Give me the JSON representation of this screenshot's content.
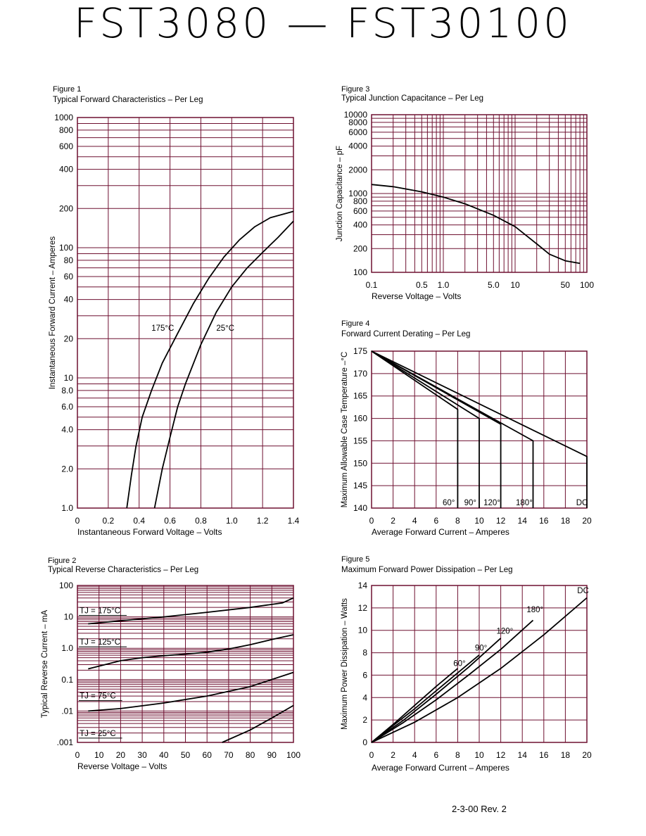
{
  "page": {
    "title": "FST3080  —  FST30100",
    "footer": "2-3-00   Rev. 2"
  },
  "colors": {
    "grid": "#6e1030",
    "curve": "#000000",
    "text": "#000000"
  },
  "chart_data": [
    {
      "id": "fig1",
      "type": "line",
      "figure_label": "Figure 1",
      "title": "Typical Forward Characteristics – Per Leg",
      "xlabel": "Instantaneous Forward Voltage – Volts",
      "ylabel": "Instantaneous Forward Current – Amperes",
      "xscale": "linear",
      "yscale": "log",
      "xlim": [
        0,
        1.4
      ],
      "ylim": [
        1,
        1000
      ],
      "xticks": [
        0,
        0.2,
        0.4,
        0.6,
        0.8,
        1.0,
        1.2,
        1.4
      ],
      "xtick_labels": [
        "0",
        "0.2",
        "0.4",
        "0.6",
        "0.8",
        "1.0",
        "1.2",
        "1.4"
      ],
      "yticks": [
        1,
        2,
        4,
        6,
        8,
        10,
        20,
        40,
        60,
        80,
        100,
        200,
        400,
        600,
        800,
        1000
      ],
      "ytick_labels": [
        "1.0",
        "2.0",
        "4.0",
        "6.0",
        "8.0",
        "10",
        "20",
        "40",
        "60",
        "80",
        "100",
        "200",
        "400",
        "600",
        "800",
        "1000"
      ],
      "grid": true,
      "series": [
        {
          "name": "175°C",
          "x": [
            0.32,
            0.35,
            0.38,
            0.42,
            0.48,
            0.55,
            0.65,
            0.75,
            0.85,
            0.95,
            1.05,
            1.15,
            1.25,
            1.4
          ],
          "y": [
            1,
            1.8,
            3,
            5,
            8,
            13,
            22,
            37,
            58,
            85,
            115,
            145,
            170,
            190
          ]
        },
        {
          "name": "25°C",
          "x": [
            0.5,
            0.55,
            0.6,
            0.65,
            0.7,
            0.8,
            0.9,
            1.0,
            1.1,
            1.2,
            1.3,
            1.4
          ],
          "y": [
            1,
            2,
            3.5,
            6,
            9,
            18,
            32,
            50,
            70,
            92,
            120,
            160
          ]
        }
      ],
      "annotations": [
        {
          "text": "175°C",
          "x": 0.48,
          "y": 23
        },
        {
          "text": "25°C",
          "x": 0.9,
          "y": 23
        }
      ]
    },
    {
      "id": "fig2",
      "type": "line",
      "figure_label": "Figure 2",
      "title": "Typical Reverse Characteristics – Per Leg",
      "xlabel": "Reverse Voltage – Volts",
      "ylabel": "Typical Reverse Current – mA",
      "xscale": "linear",
      "yscale": "log",
      "xlim": [
        0,
        100
      ],
      "ylim": [
        0.001,
        100
      ],
      "xticks": [
        0,
        10,
        20,
        30,
        40,
        50,
        60,
        70,
        80,
        90,
        100
      ],
      "xtick_labels": [
        "0",
        "10",
        "20",
        "30",
        "40",
        "50",
        "60",
        "70",
        "80",
        "90",
        "100"
      ],
      "yticks": [
        0.001,
        0.01,
        0.1,
        1,
        10,
        100
      ],
      "ytick_labels": [
        ".001",
        ".01",
        "0.1",
        "1.0",
        "10",
        "100"
      ],
      "grid": true,
      "series": [
        {
          "name": "TJ = 175°C",
          "x": [
            5,
            20,
            40,
            60,
            80,
            95,
            100
          ],
          "y": [
            6,
            7.5,
            10,
            14,
            20,
            28,
            40
          ]
        },
        {
          "name": "TJ = 125°C",
          "x": [
            5,
            10,
            20,
            30,
            40,
            50,
            60,
            70,
            80,
            90,
            100
          ],
          "y": [
            0.22,
            0.27,
            0.4,
            0.5,
            0.58,
            0.65,
            0.75,
            0.95,
            1.3,
            1.9,
            2.7
          ]
        },
        {
          "name": "TJ = 75°C",
          "x": [
            5,
            20,
            40,
            60,
            80,
            100
          ],
          "y": [
            0.01,
            0.012,
            0.018,
            0.03,
            0.06,
            0.17
          ]
        },
        {
          "name": "TJ = 25°C",
          "x": [
            67,
            80,
            90,
            100
          ],
          "y": [
            0.001,
            0.0025,
            0.006,
            0.015
          ]
        }
      ],
      "annotations": [
        {
          "text": "TJ = 175°C",
          "x": 1,
          "y": 13
        },
        {
          "text": "TJ = 125°C",
          "x": 1,
          "y": 1.3
        },
        {
          "text": "TJ = 75°C",
          "x": 1,
          "y": 0.025
        },
        {
          "text": "TJ = 25°C",
          "x": 1,
          "y": 0.0016
        }
      ]
    },
    {
      "id": "fig3",
      "type": "line",
      "figure_label": "Figure 3",
      "title": "Typical Junction Capacitance – Per Leg",
      "xlabel": "Reverse Voltage – Volts",
      "ylabel": "Junction Capacitance – pF",
      "xscale": "log",
      "yscale": "log",
      "xlim": [
        0.1,
        100
      ],
      "ylim": [
        100,
        10000
      ],
      "xticks": [
        0.1,
        0.5,
        1,
        5,
        10,
        50,
        100
      ],
      "xtick_labels": [
        "0.1",
        "0.5",
        "1.0",
        "5.0",
        "10",
        "50",
        "100"
      ],
      "yticks": [
        100,
        200,
        400,
        600,
        800,
        1000,
        2000,
        4000,
        6000,
        8000,
        10000
      ],
      "ytick_labels": [
        "100",
        "200",
        "400",
        "600",
        "800",
        "1000",
        "2000",
        "4000",
        "6000",
        "8000",
        "10000"
      ],
      "grid": true,
      "series": [
        {
          "name": "",
          "x": [
            0.1,
            0.2,
            0.5,
            1,
            2,
            5,
            10,
            20,
            30,
            50,
            80
          ],
          "y": [
            1300,
            1220,
            1050,
            900,
            740,
            530,
            380,
            230,
            170,
            140,
            130
          ]
        }
      ],
      "annotations": []
    },
    {
      "id": "fig4",
      "type": "line",
      "figure_label": "Figure 4",
      "title": "Forward Current Derating – Per Leg",
      "xlabel": "Average Forward Current – Amperes",
      "ylabel": "Maximum Allowable Case Temperature –°C",
      "xscale": "linear",
      "yscale": "linear",
      "xlim": [
        0,
        20
      ],
      "ylim": [
        140,
        175
      ],
      "xticks": [
        0,
        2,
        4,
        6,
        8,
        10,
        12,
        14,
        16,
        18,
        20
      ],
      "xtick_labels": [
        "0",
        "2",
        "4",
        "6",
        "8",
        "10",
        "12",
        "14",
        "16",
        "18",
        "20"
      ],
      "yticks": [
        140,
        145,
        150,
        155,
        160,
        165,
        170,
        175
      ],
      "ytick_labels": [
        "140",
        "145",
        "150",
        "155",
        "160",
        "165",
        "170",
        "175"
      ],
      "grid": true,
      "series": [
        {
          "name": "60°",
          "x": [
            0,
            8,
            8
          ],
          "y": [
            175,
            162,
            140
          ]
        },
        {
          "name": "90°",
          "x": [
            0,
            10,
            10
          ],
          "y": [
            175,
            160,
            140
          ]
        },
        {
          "name": "120°",
          "x": [
            0,
            12,
            12
          ],
          "y": [
            175,
            158.7,
            140
          ]
        },
        {
          "name": "180°",
          "x": [
            0,
            15,
            15
          ],
          "y": [
            175,
            155,
            140
          ]
        },
        {
          "name": "DC",
          "x": [
            0,
            20,
            20
          ],
          "y": [
            175,
            151.5,
            140
          ]
        }
      ],
      "annotations": [
        {
          "text": "60°",
          "x": 6.6,
          "y": 140.6
        },
        {
          "text": "90°",
          "x": 8.6,
          "y": 140.6
        },
        {
          "text": "120°",
          "x": 10.4,
          "y": 140.6
        },
        {
          "text": "180°",
          "x": 13.4,
          "y": 140.6
        },
        {
          "text": "DC",
          "x": 19,
          "y": 140.6
        }
      ]
    },
    {
      "id": "fig5",
      "type": "line",
      "figure_label": "Figure 5",
      "title": "Maximum Forward Power Dissipation – Per Leg",
      "xlabel": "Average Forward Current – Amperes",
      "ylabel": "Maximum Power Dissipation – Watts",
      "xscale": "linear",
      "yscale": "linear",
      "xlim": [
        0,
        20
      ],
      "ylim": [
        0,
        14
      ],
      "xticks": [
        0,
        2,
        4,
        6,
        8,
        10,
        12,
        14,
        16,
        18,
        20
      ],
      "xtick_labels": [
        "0",
        "2",
        "4",
        "6",
        "8",
        "10",
        "12",
        "14",
        "16",
        "18",
        "20"
      ],
      "yticks": [
        0,
        2,
        4,
        6,
        8,
        10,
        12,
        14
      ],
      "ytick_labels": [
        "0",
        "2",
        "4",
        "6",
        "8",
        "10",
        "12",
        "14"
      ],
      "grid": true,
      "series": [
        {
          "name": "60°",
          "x": [
            0,
            2,
            4,
            6,
            8
          ],
          "y": [
            0,
            1.6,
            3.3,
            5,
            6.6
          ]
        },
        {
          "name": "90°",
          "x": [
            0,
            2,
            4,
            6,
            8,
            10
          ],
          "y": [
            0,
            1.5,
            3,
            4.6,
            6.2,
            7.8
          ]
        },
        {
          "name": "120°",
          "x": [
            0,
            3,
            6,
            9,
            12
          ],
          "y": [
            0,
            2,
            4.3,
            6.7,
            9.3
          ]
        },
        {
          "name": "180°",
          "x": [
            0,
            3,
            6,
            9,
            12,
            15
          ],
          "y": [
            0,
            1.8,
            3.8,
            6,
            8.3,
            10.9
          ]
        },
        {
          "name": "DC",
          "x": [
            0,
            4,
            8,
            12,
            16,
            20
          ],
          "y": [
            0,
            1.8,
            4,
            6.6,
            9.6,
            12.9
          ]
        }
      ],
      "annotations": [
        {
          "text": "60°",
          "x": 7.6,
          "y": 6.8
        },
        {
          "text": "90°",
          "x": 9.6,
          "y": 8.2
        },
        {
          "text": "120°",
          "x": 11.6,
          "y": 9.7
        },
        {
          "text": "180°",
          "x": 14.4,
          "y": 11.6
        },
        {
          "text": "DC",
          "x": 19.1,
          "y": 13.3
        }
      ]
    }
  ]
}
